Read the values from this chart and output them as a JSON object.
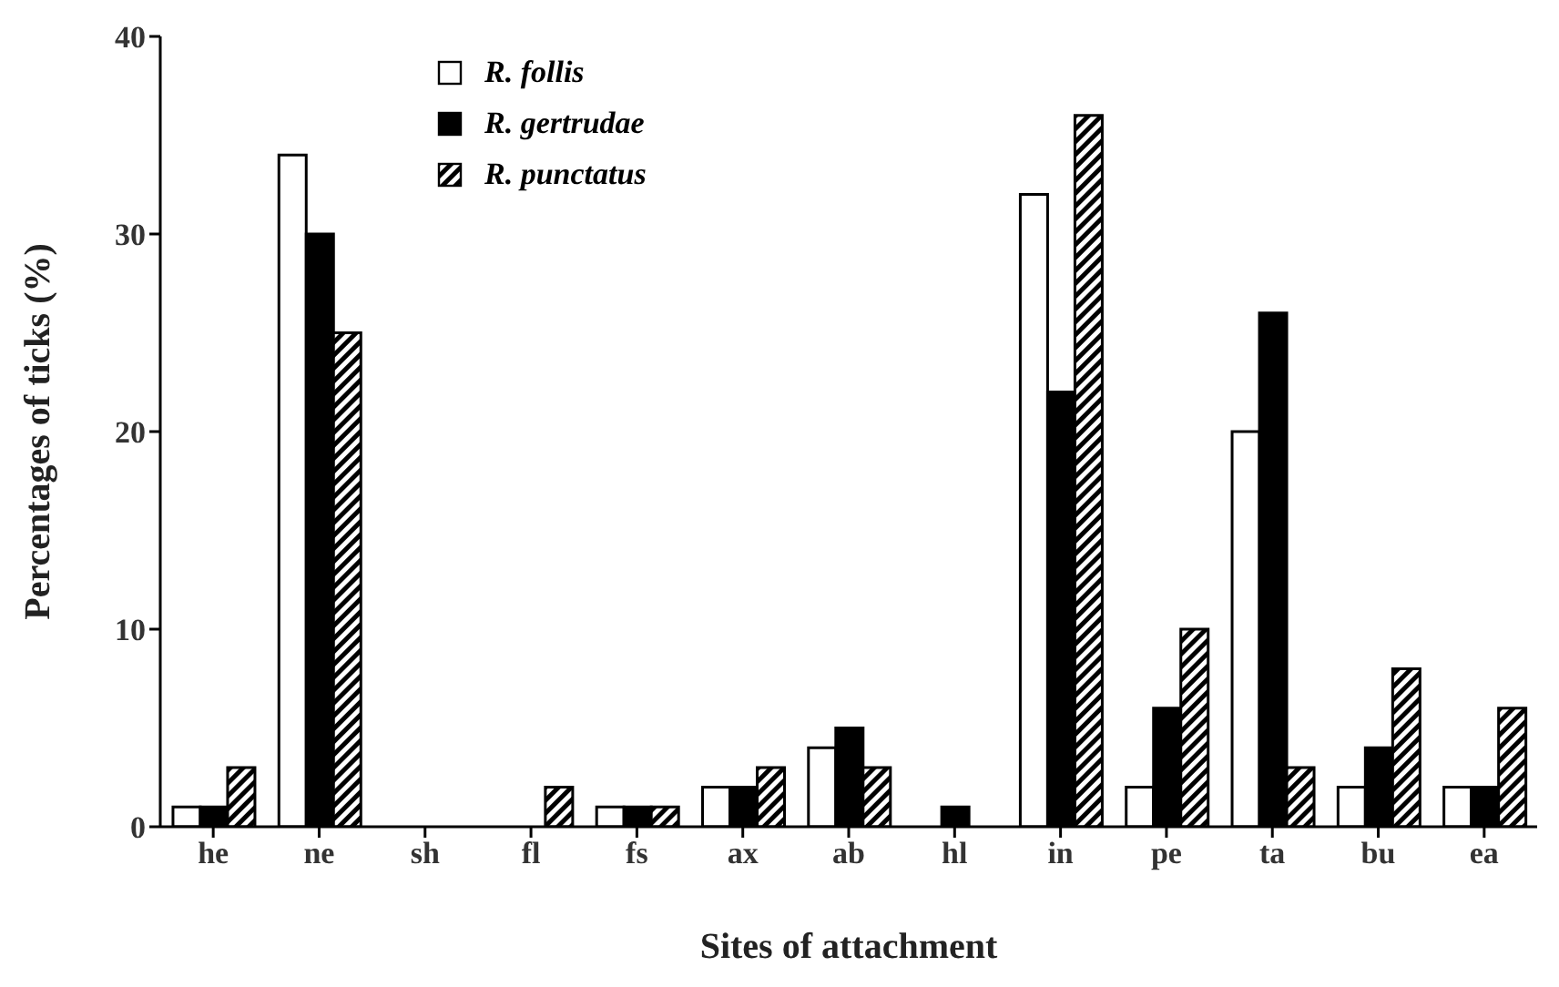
{
  "chart_data": {
    "type": "bar",
    "xlabel": "Sites of attachment",
    "ylabel": "Percentages of ticks (%)",
    "categories": [
      "he",
      "ne",
      "sh",
      "fl",
      "fs",
      "ax",
      "ab",
      "hl",
      "in",
      "pe",
      "ta",
      "bu",
      "ea"
    ],
    "series": [
      {
        "name": "R. follis",
        "color": "#ffffff",
        "values": [
          1,
          34,
          0,
          0,
          1,
          2,
          4,
          0,
          32,
          2,
          20,
          2,
          2
        ]
      },
      {
        "name": "R. gertrudae",
        "color": "#000000",
        "values": [
          1,
          30,
          0,
          0,
          1,
          2,
          5,
          1,
          22,
          6,
          26,
          4,
          2
        ]
      },
      {
        "name": "R. punctatus",
        "color": "#000000",
        "values": [
          3,
          25,
          0,
          2,
          1,
          3,
          3,
          0,
          36,
          10,
          3,
          8,
          6
        ]
      }
    ],
    "ylim": [
      0,
      40
    ],
    "yticks": [
      0,
      10,
      20,
      30,
      40
    ],
    "grid": false,
    "legend": "top left"
  }
}
